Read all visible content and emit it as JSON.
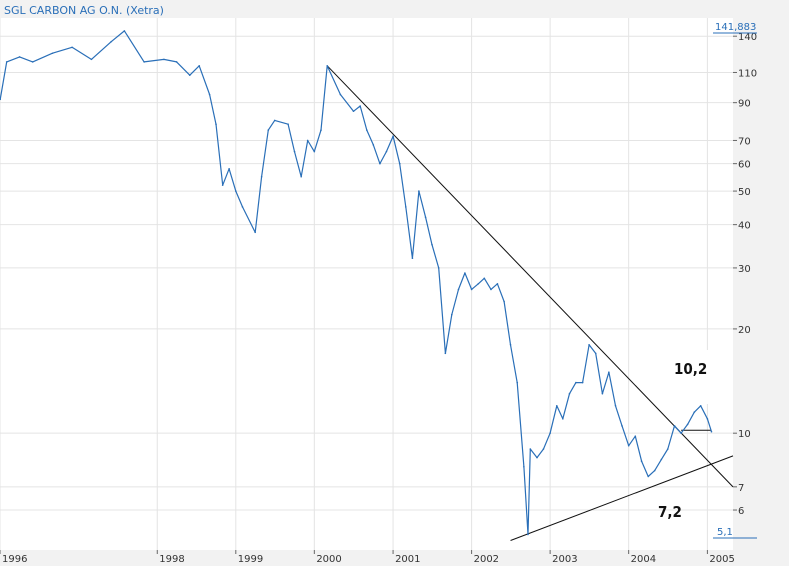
{
  "chart_data": {
    "type": "line",
    "title": "SGL CARBON AG O.N. (Xetra)",
    "xlabel": "",
    "ylabel": "",
    "y_scale": "log",
    "ylim": [
      4.6,
      158
    ],
    "xlim": [
      "1996-01-01",
      "2005-04-30"
    ],
    "grid": true,
    "x_ticks": [
      "1996",
      "1998",
      "1999",
      "2000",
      "2001",
      "2002",
      "2003",
      "2004",
      "2005"
    ],
    "y_ticks": [
      "140",
      "110",
      "90",
      "70",
      "60",
      "50",
      "40",
      "30",
      "20",
      "10",
      "7",
      "6"
    ],
    "max_label": "141,883",
    "min_label": "5,1",
    "color": "#2a6fb8",
    "series": [
      {
        "points": [
          [
            "1996-01-02",
            92
          ],
          [
            "1996-02-01",
            118
          ],
          [
            "1996-04-01",
            122
          ],
          [
            "1996-06-01",
            118
          ],
          [
            "1996-09-01",
            125
          ],
          [
            "1996-12-01",
            130
          ],
          [
            "1997-03-01",
            120
          ],
          [
            "1997-06-01",
            135
          ],
          [
            "1997-08-01",
            145
          ],
          [
            "1997-11-01",
            118
          ],
          [
            "1998-02-01",
            120
          ],
          [
            "1998-04-01",
            118
          ],
          [
            "1998-06-01",
            108
          ],
          [
            "1998-07-15",
            115
          ],
          [
            "1998-09-01",
            95
          ],
          [
            "1998-10-01",
            78
          ],
          [
            "1998-11-01",
            52
          ],
          [
            "1998-12-01",
            58
          ],
          [
            "1999-01-01",
            50
          ],
          [
            "1999-02-01",
            45
          ],
          [
            "1999-04-01",
            38
          ],
          [
            "1999-05-01",
            55
          ],
          [
            "1999-06-01",
            75
          ],
          [
            "1999-07-01",
            80
          ],
          [
            "1999-09-01",
            78
          ],
          [
            "1999-10-01",
            65
          ],
          [
            "1999-11-01",
            55
          ],
          [
            "1999-12-01",
            70
          ],
          [
            "2000-01-01",
            65
          ],
          [
            "2000-02-01",
            75
          ],
          [
            "2000-03-01",
            115
          ],
          [
            "2000-05-01",
            95
          ],
          [
            "2000-07-01",
            85
          ],
          [
            "2000-08-01",
            88
          ],
          [
            "2000-09-01",
            75
          ],
          [
            "2000-10-01",
            68
          ],
          [
            "2000-11-01",
            60
          ],
          [
            "2000-12-01",
            65
          ],
          [
            "2001-01-01",
            72
          ],
          [
            "2001-02-01",
            60
          ],
          [
            "2001-03-01",
            45
          ],
          [
            "2001-04-01",
            32
          ],
          [
            "2001-05-01",
            50
          ],
          [
            "2001-06-01",
            42
          ],
          [
            "2001-07-01",
            35
          ],
          [
            "2001-08-01",
            30
          ],
          [
            "2001-09-01",
            17
          ],
          [
            "2001-10-01",
            22
          ],
          [
            "2001-11-01",
            26
          ],
          [
            "2001-12-01",
            29
          ],
          [
            "2002-01-01",
            26
          ],
          [
            "2002-02-01",
            27
          ],
          [
            "2002-03-01",
            28
          ],
          [
            "2002-04-01",
            26
          ],
          [
            "2002-05-01",
            27
          ],
          [
            "2002-06-01",
            24
          ],
          [
            "2002-07-01",
            18
          ],
          [
            "2002-08-01",
            14
          ],
          [
            "2002-09-01",
            8
          ],
          [
            "2002-09-20",
            5.1
          ],
          [
            "2002-10-01",
            9
          ],
          [
            "2002-11-01",
            8.5
          ],
          [
            "2002-12-01",
            9
          ],
          [
            "2003-01-01",
            10
          ],
          [
            "2003-02-01",
            12
          ],
          [
            "2003-03-01",
            11
          ],
          [
            "2003-04-01",
            13
          ],
          [
            "2003-05-01",
            14
          ],
          [
            "2003-06-01",
            14
          ],
          [
            "2003-07-01",
            18
          ],
          [
            "2003-08-01",
            17
          ],
          [
            "2003-09-01",
            13
          ],
          [
            "2003-10-01",
            15
          ],
          [
            "2003-11-01",
            12
          ],
          [
            "2003-12-01",
            10.5
          ],
          [
            "2004-01-01",
            9.2
          ],
          [
            "2004-02-01",
            9.8
          ],
          [
            "2004-03-01",
            8.3
          ],
          [
            "2004-04-01",
            7.5
          ],
          [
            "2004-05-01",
            7.8
          ],
          [
            "2004-06-01",
            8.4
          ],
          [
            "2004-07-01",
            9.0
          ],
          [
            "2004-08-01",
            10.5
          ],
          [
            "2004-09-01",
            10.0
          ],
          [
            "2004-10-01",
            10.6
          ],
          [
            "2004-11-01",
            11.5
          ],
          [
            "2004-12-01",
            12.0
          ],
          [
            "2005-01-01",
            11.0
          ],
          [
            "2005-01-20",
            10.1
          ]
        ]
      }
    ],
    "trendlines": [
      {
        "from": [
          "2000-03-01",
          115
        ],
        "to": [
          "2005-04-30",
          7.0
        ]
      },
      {
        "from": [
          "2002-07-01",
          4.9
        ],
        "to": [
          "2005-04-30",
          8.6
        ]
      },
      {
        "from": [
          "2004-09-01",
          10.2
        ],
        "to": [
          "2005-01-20",
          10.2
        ]
      }
    ],
    "annotations": [
      "10,2",
      "7,2"
    ]
  }
}
